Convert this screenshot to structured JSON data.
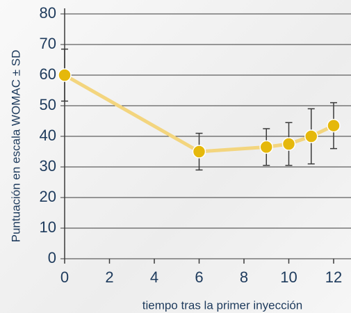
{
  "chart_data": {
    "type": "line",
    "xlabel": "tiempo tras la primer inyección",
    "ylabel": "Puntuación en escala WOMAC ± SD",
    "x": [
      0,
      6,
      9,
      10,
      11,
      12
    ],
    "series": [
      {
        "color": "#e5b80b",
        "line_color": "#f3d57e",
        "values": [
          60,
          35,
          36.5,
          37.5,
          40,
          43.5
        ],
        "errors": [
          8.5,
          6,
          6,
          7,
          9,
          7.5
        ]
      }
    ],
    "xlim": [
      0,
      12
    ],
    "xticks": [
      0,
      2,
      4,
      6,
      8,
      10,
      12
    ],
    "ylim": [
      0,
      80
    ],
    "yticks": [
      0,
      10,
      20,
      30,
      40,
      50,
      60,
      70,
      80
    ],
    "grid": true
  }
}
